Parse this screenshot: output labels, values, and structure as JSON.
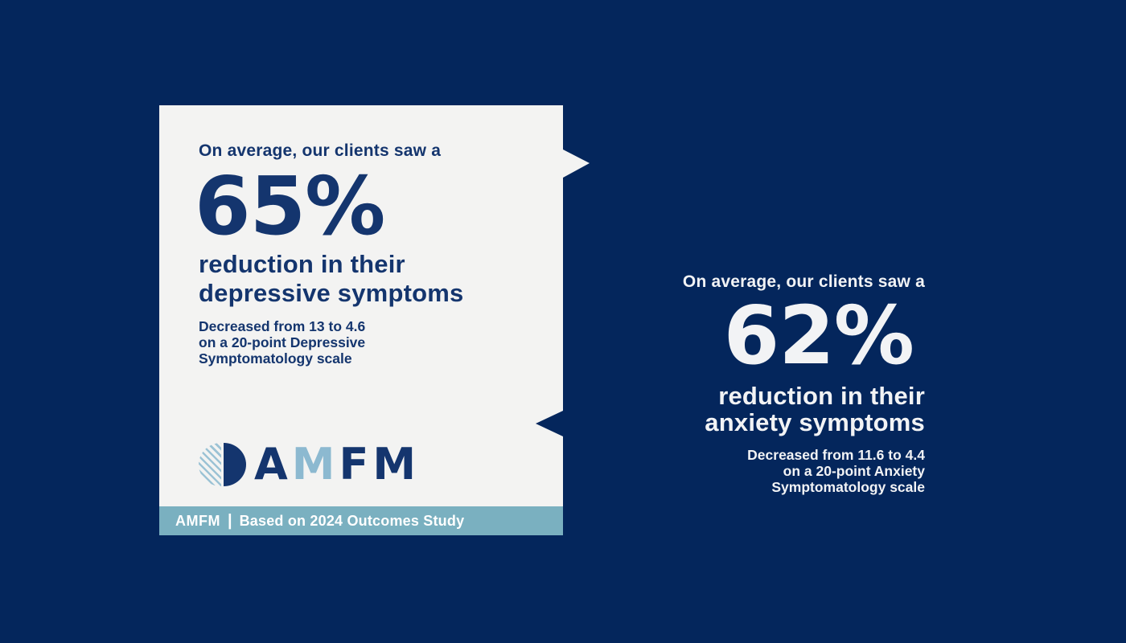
{
  "colors": {
    "background_navy": "#04265c",
    "card_offwhite": "#f3f3f2",
    "text_navy": "#14356e",
    "accent_light_blue": "#8cb9d0",
    "footer_bar_teal": "#7ab0c0",
    "right_text_white": "#f2f3f5"
  },
  "depression_card": {
    "eyebrow": "On average, our clients saw a",
    "stat_value": "65%",
    "headline_line1": "reduction in their",
    "headline_line2": "depressive symptoms",
    "detail_prefix": "Decreased from ",
    "detail_from": "13",
    "detail_mid": " to ",
    "detail_to": "4.6",
    "detail_line2": "on a 20-point Depressive",
    "detail_line3": "Symptomatology scale"
  },
  "logo": {
    "letter_1": "A",
    "letter_2": "M",
    "letters_3_4": "FM"
  },
  "footer": {
    "brand": "AMFM",
    "divider": "|",
    "note": "Based on 2024 Outcomes Study"
  },
  "anxiety_panel": {
    "eyebrow": "On average, our clients saw a",
    "stat_value": "62%",
    "headline_line1": "reduction in their",
    "headline_line2": "anxiety symptoms",
    "detail_prefix": "Decreased from ",
    "detail_from": "11.6",
    "detail_mid": " to ",
    "detail_to": "4.4",
    "detail_line2": "on a 20-point Anxiety",
    "detail_line3": "Symptomatology scale"
  }
}
